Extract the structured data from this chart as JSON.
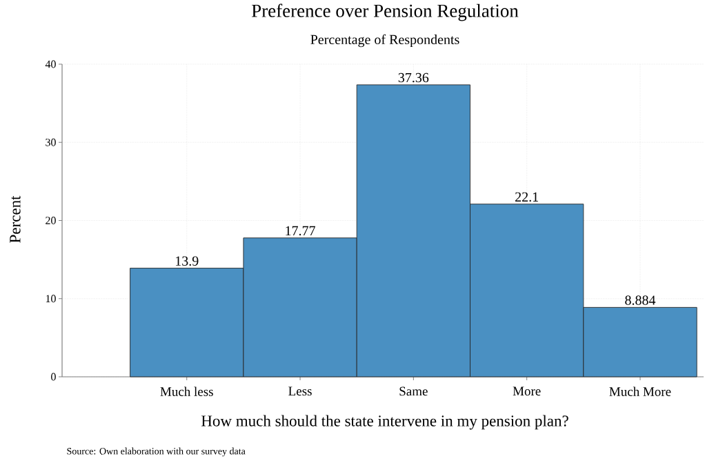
{
  "chart_data": {
    "type": "bar",
    "title": "Preference over Pension Regulation",
    "subtitle": "Percentage of Respondents",
    "xlabel": "How much should the state intervene in my pension plan?",
    "ylabel": "Percent",
    "categories": [
      "Much less",
      "Less",
      "Same",
      "More",
      "Much More"
    ],
    "values": [
      13.9,
      17.77,
      37.36,
      22.1,
      8.884
    ],
    "color": "#4a90c2",
    "ylim": [
      0,
      40
    ],
    "yticks": [
      0,
      10,
      20,
      30,
      40
    ],
    "grid": true,
    "data_labels": true,
    "annotations": [
      "Source: Own elaboration with our survey data"
    ]
  }
}
